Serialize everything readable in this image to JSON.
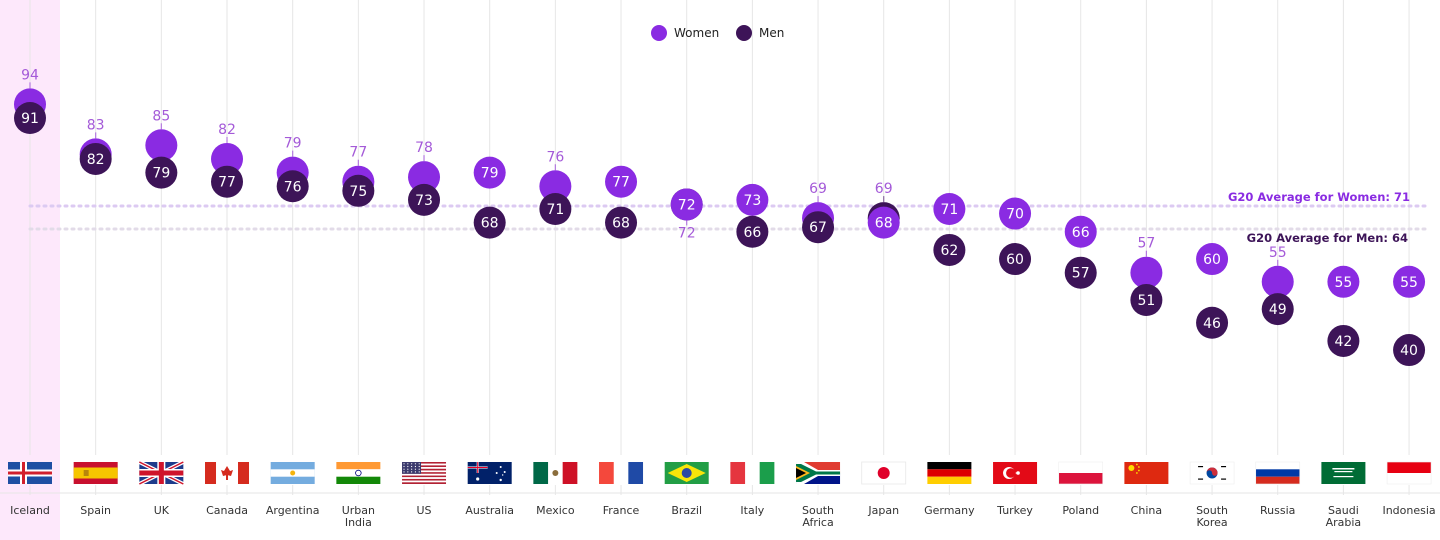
{
  "chart_data": {
    "type": "scatter",
    "legend": {
      "placement": "top-center"
    },
    "series": [
      {
        "name": "Women",
        "color": "#8a2be2",
        "values": [
          94,
          83,
          85,
          82,
          79,
          77,
          78,
          79,
          76,
          77,
          72,
          73,
          69,
          68,
          71,
          70,
          66,
          57,
          60,
          55,
          55,
          55
        ]
      },
      {
        "name": "Men",
        "color": "#3d1458",
        "values": [
          91,
          82,
          79,
          77,
          76,
          75,
          73,
          68,
          71,
          68,
          72,
          66,
          67,
          69,
          62,
          60,
          57,
          51,
          46,
          49,
          42,
          40
        ]
      }
    ],
    "categories": [
      "Iceland",
      "Spain",
      "UK",
      "Canada",
      "Argentina",
      "Urban India",
      "US",
      "Australia",
      "Mexico",
      "France",
      "Brazil",
      "Italy",
      "South Africa",
      "Japan",
      "Germany",
      "Turkey",
      "Poland",
      "China",
      "South Korea",
      "Russia",
      "Saudi Arabia",
      "Indonesia"
    ],
    "flags": [
      "iceland",
      "spain",
      "uk",
      "canada",
      "argentina",
      "india",
      "us",
      "australia",
      "mexico",
      "france",
      "brazil",
      "italy",
      "south-africa",
      "japan",
      "germany",
      "turkey",
      "poland",
      "china",
      "south-korea",
      "russia",
      "saudi-arabia",
      "indonesia"
    ],
    "highlight_category": "Iceland",
    "highlight_color": "#fde8fb",
    "averages": [
      {
        "label": "G20 Average for Women: 71",
        "value": 71,
        "color": "#8a2be2"
      },
      {
        "label": "G20 Average for Men: 64",
        "value": 64,
        "color": "#3d1458"
      }
    ],
    "ylim": [
      35,
      100
    ],
    "grid": "vertical"
  }
}
